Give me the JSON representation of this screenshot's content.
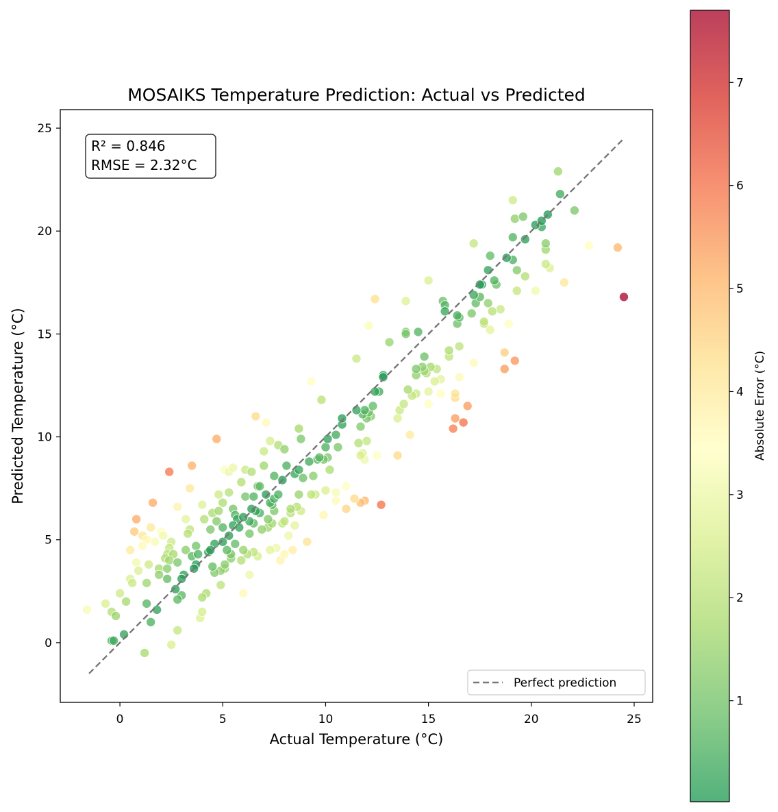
{
  "chart_data": {
    "type": "scatter",
    "title": "MOSAIKS Temperature Prediction: Actual vs Predicted",
    "xlabel": "Actual Temperature (°C)",
    "ylabel": "Predicted Temperature (°C)",
    "xlim": [
      -2.9,
      25.9
    ],
    "ylim": [
      -2.9,
      25.9
    ],
    "xticks": [
      0,
      5,
      10,
      15,
      20,
      25
    ],
    "yticks": [
      0,
      5,
      10,
      15,
      20,
      25
    ],
    "grid": false,
    "stats": {
      "r2": "R² = 0.846",
      "rmse": "RMSE = 2.32°C"
    },
    "reference_line": {
      "name": "Perfect prediction",
      "from": [
        -1.5,
        -1.5
      ],
      "to": [
        24.5,
        24.5
      ],
      "style": "dashed",
      "color": "#777777"
    },
    "legend": {
      "placement": "lower-right",
      "entries": [
        "Perfect prediction"
      ]
    },
    "colorbar": {
      "label": "Absolute Error (°C)",
      "range": [
        0.02,
        7.7
      ],
      "ticks": [
        1,
        2,
        3,
        4,
        5,
        6,
        7
      ],
      "colormap": "RdYlGn_r",
      "stops": [
        "#1a9850",
        "#66bd63",
        "#a6d96a",
        "#d9ef8b",
        "#ffffbf",
        "#fee08b",
        "#fdae61",
        "#f46d43",
        "#d73027",
        "#a50026"
      ]
    },
    "points": [
      [
        -1.6,
        1.6
      ],
      [
        -0.7,
        1.9
      ],
      [
        -0.4,
        1.5
      ],
      [
        -0.2,
        1.3
      ],
      [
        -0.4,
        0.1
      ],
      [
        -0.3,
        0.1
      ],
      [
        0.2,
        0.4
      ],
      [
        0.0,
        2.4
      ],
      [
        0.3,
        2.0
      ],
      [
        0.5,
        3.1
      ],
      [
        0.6,
        2.9
      ],
      [
        0.5,
        4.5
      ],
      [
        0.7,
        5.4
      ],
      [
        0.8,
        6.0
      ],
      [
        0.8,
        3.9
      ],
      [
        0.9,
        3.5
      ],
      [
        1.1,
        4.7
      ],
      [
        1.1,
        5.2
      ],
      [
        1.3,
        5.0
      ],
      [
        1.3,
        2.9
      ],
      [
        1.3,
        1.9
      ],
      [
        1.2,
        -0.5
      ],
      [
        1.5,
        1.0
      ],
      [
        1.5,
        5.6
      ],
      [
        1.6,
        6.8
      ],
      [
        1.4,
        3.8
      ],
      [
        1.7,
        4.9
      ],
      [
        1.8,
        1.6
      ],
      [
        1.9,
        3.3
      ],
      [
        1.9,
        3.6
      ],
      [
        2.0,
        5.4
      ],
      [
        2.1,
        5.2
      ],
      [
        2.2,
        4.1
      ],
      [
        2.3,
        3.1
      ],
      [
        2.3,
        4.3
      ],
      [
        2.3,
        3.6
      ],
      [
        2.4,
        4.6
      ],
      [
        2.4,
        4.0
      ],
      [
        2.4,
        8.3
      ],
      [
        2.5,
        4.9
      ],
      [
        2.5,
        -0.1
      ],
      [
        2.6,
        4.3
      ],
      [
        2.7,
        2.6
      ],
      [
        2.8,
        3.9
      ],
      [
        2.8,
        2.1
      ],
      [
        2.8,
        0.6
      ],
      [
        2.8,
        6.6
      ],
      [
        3.0,
        2.3
      ],
      [
        3.0,
        3.1
      ],
      [
        3.1,
        3.3
      ],
      [
        3.2,
        4.5
      ],
      [
        3.2,
        6.0
      ],
      [
        3.3,
        5.3
      ],
      [
        3.4,
        7.5
      ],
      [
        3.4,
        5.5
      ],
      [
        3.5,
        8.6
      ],
      [
        3.5,
        4.2
      ],
      [
        3.6,
        3.6
      ],
      [
        3.7,
        3.8
      ],
      [
        3.7,
        4.7
      ],
      [
        3.8,
        4.3
      ],
      [
        3.9,
        1.2
      ],
      [
        4.0,
        6.7
      ],
      [
        4.0,
        2.2
      ],
      [
        4.0,
        1.5
      ],
      [
        4.1,
        6.0
      ],
      [
        4.2,
        2.4
      ],
      [
        4.3,
        4.4
      ],
      [
        4.4,
        5.5
      ],
      [
        4.4,
        4.5
      ],
      [
        4.5,
        6.3
      ],
      [
        4.5,
        3.7
      ],
      [
        4.6,
        4.8
      ],
      [
        4.6,
        3.4
      ],
      [
        4.7,
        5.9
      ],
      [
        4.7,
        9.9
      ],
      [
        4.8,
        6.4
      ],
      [
        4.8,
        7.2
      ],
      [
        4.9,
        3.5
      ],
      [
        4.9,
        2.8
      ],
      [
        5.0,
        4.9
      ],
      [
        5.0,
        5.6
      ],
      [
        5.0,
        6.8
      ],
      [
        5.1,
        8.4
      ],
      [
        5.1,
        3.6
      ],
      [
        5.1,
        3.8
      ],
      [
        5.2,
        4.5
      ],
      [
        5.3,
        5.2
      ],
      [
        5.3,
        7.3
      ],
      [
        5.3,
        8.3
      ],
      [
        5.4,
        4.1
      ],
      [
        5.4,
        4.3
      ],
      [
        5.5,
        5.7
      ],
      [
        5.5,
        6.5
      ],
      [
        5.5,
        8.5
      ],
      [
        5.6,
        6.2
      ],
      [
        5.6,
        4.8
      ],
      [
        5.7,
        6.0
      ],
      [
        5.8,
        5.6
      ],
      [
        5.9,
        7.8
      ],
      [
        5.9,
        4.0
      ],
      [
        6.0,
        6.1
      ],
      [
        6.0,
        2.4
      ],
      [
        6.0,
        4.5
      ],
      [
        6.1,
        7.1
      ],
      [
        6.1,
        8.4
      ],
      [
        6.2,
        4.3
      ],
      [
        6.3,
        5.9
      ],
      [
        6.3,
        5.3
      ],
      [
        6.3,
        3.3
      ],
      [
        6.4,
        6.5
      ],
      [
        6.4,
        8.3
      ],
      [
        6.5,
        4.4
      ],
      [
        6.5,
        5.8
      ],
      [
        6.5,
        7.1
      ],
      [
        6.6,
        6.4
      ],
      [
        6.6,
        11.0
      ],
      [
        6.7,
        7.6
      ],
      [
        6.7,
        4.2
      ],
      [
        6.8,
        6.3
      ],
      [
        6.8,
        7.6
      ],
      [
        6.9,
        5.5
      ],
      [
        7.0,
        8.6
      ],
      [
        7.0,
        9.3
      ],
      [
        7.1,
        7.2
      ],
      [
        7.1,
        10.7
      ],
      [
        7.2,
        6.0
      ],
      [
        7.2,
        5.6
      ],
      [
        7.3,
        6.8
      ],
      [
        7.3,
        9.8
      ],
      [
        7.3,
        4.5
      ],
      [
        7.4,
        6.7
      ],
      [
        7.4,
        5.8
      ],
      [
        7.5,
        6.4
      ],
      [
        7.5,
        7.0
      ],
      [
        7.5,
        8.1
      ],
      [
        7.6,
        4.6
      ],
      [
        7.7,
        9.6
      ],
      [
        7.7,
        7.2
      ],
      [
        7.8,
        4.0
      ],
      [
        7.9,
        5.8
      ],
      [
        7.9,
        7.9
      ],
      [
        8.0,
        5.9
      ],
      [
        8.0,
        9.4
      ],
      [
        8.0,
        4.3
      ],
      [
        8.1,
        8.6
      ],
      [
        8.2,
        5.2
      ],
      [
        8.3,
        6.5
      ],
      [
        8.3,
        6.3
      ],
      [
        8.4,
        4.5
      ],
      [
        8.5,
        5.7
      ],
      [
        8.5,
        8.2
      ],
      [
        8.6,
        6.6
      ],
      [
        8.7,
        7.2
      ],
      [
        8.7,
        8.4
      ],
      [
        8.7,
        10.4
      ],
      [
        8.8,
        6.4
      ],
      [
        8.8,
        9.9
      ],
      [
        8.9,
        8.0
      ],
      [
        9.1,
        4.9
      ],
      [
        9.2,
        8.8
      ],
      [
        9.3,
        7.2
      ],
      [
        9.3,
        12.7
      ],
      [
        9.4,
        8.1
      ],
      [
        9.5,
        7.2
      ],
      [
        9.6,
        8.9
      ],
      [
        9.7,
        9.0
      ],
      [
        9.8,
        11.8
      ],
      [
        9.9,
        6.2
      ],
      [
        9.9,
        8.9
      ],
      [
        10.0,
        9.5
      ],
      [
        10.0,
        7.4
      ],
      [
        10.1,
        9.0
      ],
      [
        10.1,
        9.9
      ],
      [
        10.2,
        8.4
      ],
      [
        10.5,
        6.9
      ],
      [
        10.5,
        10.1
      ],
      [
        10.5,
        7.3
      ],
      [
        10.6,
        9.5
      ],
      [
        10.8,
        10.9
      ],
      [
        10.8,
        10.6
      ],
      [
        11.0,
        7.6
      ],
      [
        11.0,
        6.5
      ],
      [
        11.4,
        7.0
      ],
      [
        11.5,
        11.3
      ],
      [
        11.5,
        13.8
      ],
      [
        11.6,
        9.7
      ],
      [
        11.7,
        10.5
      ],
      [
        11.7,
        9.1
      ],
      [
        11.7,
        6.8
      ],
      [
        11.8,
        11.1
      ],
      [
        11.8,
        9.2
      ],
      [
        11.9,
        11.3
      ],
      [
        11.9,
        8.9
      ],
      [
        11.9,
        6.9
      ],
      [
        12.0,
        9.8
      ],
      [
        12.0,
        10.9
      ],
      [
        12.1,
        11.2
      ],
      [
        12.1,
        15.4
      ],
      [
        12.2,
        11.0
      ],
      [
        12.3,
        11.5
      ],
      [
        12.4,
        16.7
      ],
      [
        12.4,
        12.2
      ],
      [
        12.5,
        9.1
      ],
      [
        12.6,
        12.2
      ],
      [
        12.7,
        6.7
      ],
      [
        12.8,
        12.9
      ],
      [
        12.8,
        13.0
      ],
      [
        13.1,
        14.6
      ],
      [
        13.5,
        10.9
      ],
      [
        13.5,
        9.1
      ],
      [
        13.6,
        11.3
      ],
      [
        13.8,
        11.6
      ],
      [
        13.9,
        15.1
      ],
      [
        13.9,
        15.0
      ],
      [
        13.9,
        16.6
      ],
      [
        14.0,
        12.3
      ],
      [
        14.1,
        10.1
      ],
      [
        14.2,
        12.0
      ],
      [
        14.4,
        12.1
      ],
      [
        14.4,
        13.0
      ],
      [
        14.4,
        13.3
      ],
      [
        14.5,
        15.1
      ],
      [
        14.7,
        13.4
      ],
      [
        14.8,
        13.9
      ],
      [
        14.8,
        13.2
      ],
      [
        14.9,
        13.1
      ],
      [
        15.0,
        11.6
      ],
      [
        15.0,
        12.2
      ],
      [
        15.0,
        17.6
      ],
      [
        15.1,
        13.4
      ],
      [
        15.3,
        12.7
      ],
      [
        15.4,
        13.3
      ],
      [
        15.6,
        12.8
      ],
      [
        15.6,
        12.1
      ],
      [
        15.7,
        16.6
      ],
      [
        15.8,
        16.4
      ],
      [
        15.8,
        16.1
      ],
      [
        16.0,
        14.2
      ],
      [
        16.0,
        13.9
      ],
      [
        16.2,
        10.4
      ],
      [
        16.3,
        12.1
      ],
      [
        16.3,
        10.9
      ],
      [
        16.3,
        11.9
      ],
      [
        16.4,
        15.5
      ],
      [
        16.4,
        15.9
      ],
      [
        16.5,
        15.8
      ],
      [
        16.5,
        12.9
      ],
      [
        16.5,
        14.4
      ],
      [
        16.7,
        10.7
      ],
      [
        16.9,
        11.5
      ],
      [
        17.1,
        16.0
      ],
      [
        17.2,
        16.9
      ],
      [
        17.2,
        19.4
      ],
      [
        17.2,
        13.6
      ],
      [
        17.3,
        16.5
      ],
      [
        17.5,
        16.8
      ],
      [
        17.5,
        17.4
      ],
      [
        17.6,
        17.4
      ],
      [
        17.7,
        15.6
      ],
      [
        17.7,
        15.5
      ],
      [
        17.9,
        18.1
      ],
      [
        17.9,
        16.5
      ],
      [
        18.0,
        18.8
      ],
      [
        18.0,
        15.2
      ],
      [
        18.1,
        16.1
      ],
      [
        18.2,
        17.6
      ],
      [
        18.3,
        17.4
      ],
      [
        18.5,
        16.2
      ],
      [
        18.7,
        14.1
      ],
      [
        18.7,
        13.3
      ],
      [
        18.8,
        18.7
      ],
      [
        18.9,
        15.5
      ],
      [
        19.1,
        18.6
      ],
      [
        19.1,
        19.7
      ],
      [
        19.1,
        21.5
      ],
      [
        19.2,
        20.6
      ],
      [
        19.2,
        13.7
      ],
      [
        19.3,
        17.1
      ],
      [
        19.3,
        18.1
      ],
      [
        19.6,
        20.7
      ],
      [
        19.7,
        19.6
      ],
      [
        19.7,
        17.8
      ],
      [
        20.2,
        17.1
      ],
      [
        20.2,
        20.3
      ],
      [
        20.5,
        20.2
      ],
      [
        20.5,
        20.5
      ],
      [
        20.7,
        18.4
      ],
      [
        20.7,
        19.4
      ],
      [
        20.7,
        19.1
      ],
      [
        20.8,
        20.8
      ],
      [
        20.9,
        18.2
      ],
      [
        21.3,
        22.9
      ],
      [
        21.4,
        21.8
      ],
      [
        21.6,
        17.5
      ],
      [
        22.1,
        21.0
      ],
      [
        22.8,
        19.3
      ],
      [
        24.2,
        19.2
      ],
      [
        24.5,
        16.8
      ]
    ]
  }
}
